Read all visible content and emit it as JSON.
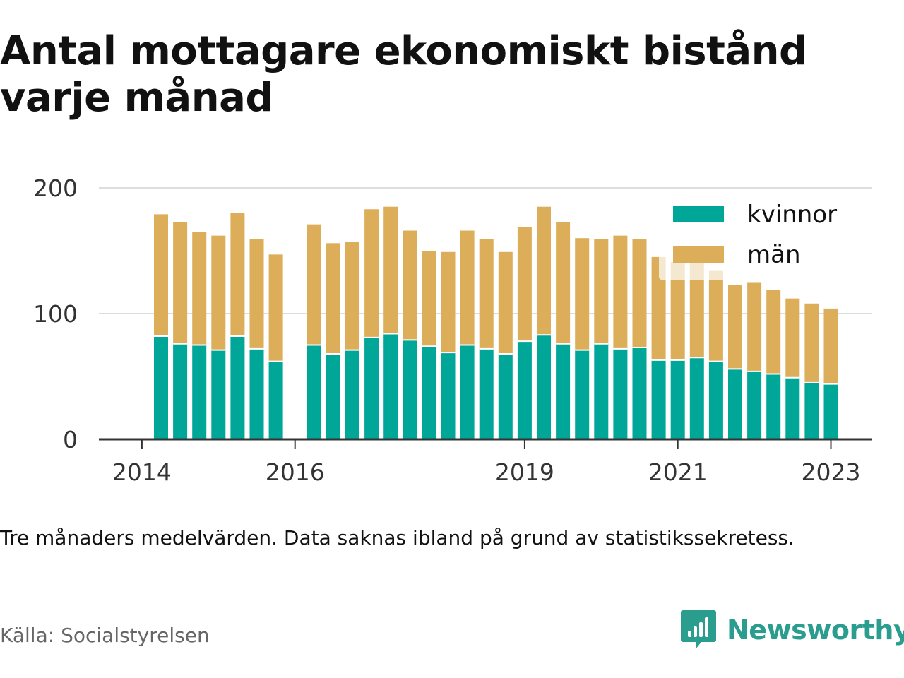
{
  "title": "Antal mottagare ekonomiskt bistånd varje månad",
  "note": "Tre månaders medelvärden. Data saknas ibland på grund av statistikssekretess.",
  "source": "Källa: Socialstyrelsen",
  "brand": {
    "name": "Newsworthy",
    "icon": "newsworthy-logo-icon"
  },
  "colors": {
    "kvinnor": "#00a698",
    "man": "#dcae5a",
    "grid": "#dddddd",
    "axis": "#333333"
  },
  "chart_data": {
    "type": "bar",
    "stacked": true,
    "x_ticks": [
      "2014",
      "2016",
      "2019",
      "2021",
      "2023"
    ],
    "y_ticks": [
      "0",
      "100",
      "200"
    ],
    "ylim": [
      0,
      200
    ],
    "legend_position": "top-right",
    "categories": [
      "2014-Q2",
      "2014-Q3",
      "2014-Q4",
      "2015-Q1",
      "2015-Q2",
      "2015-Q3",
      "2015-Q4",
      "2016-Q1",
      "2016-Q2",
      "2016-Q3",
      "2016-Q4",
      "2017-Q1",
      "2017-Q2",
      "2017-Q3",
      "2017-Q4",
      "2018-Q1",
      "2018-Q2",
      "2018-Q3",
      "2018-Q4",
      "2019-Q1",
      "2019-Q2",
      "2019-Q3",
      "2019-Q4",
      "2020-Q1",
      "2020-Q2",
      "2020-Q3",
      "2020-Q4",
      "2021-Q1",
      "2021-Q2",
      "2021-Q3",
      "2021-Q4",
      "2022-Q1",
      "2022-Q2",
      "2022-Q3",
      "2022-Q4",
      "2023-Q1"
    ],
    "series": [
      {
        "name": "kvinnor",
        "values": [
          82,
          76,
          75,
          71,
          82,
          72,
          62,
          null,
          75,
          68,
          71,
          81,
          84,
          79,
          74,
          69,
          75,
          72,
          68,
          78,
          83,
          76,
          71,
          76,
          72,
          73,
          63,
          63,
          65,
          62,
          56,
          54,
          52,
          49,
          45,
          44
        ]
      },
      {
        "name": "män",
        "values": [
          97,
          97,
          90,
          91,
          98,
          87,
          85,
          null,
          96,
          88,
          86,
          102,
          101,
          87,
          76,
          80,
          91,
          87,
          81,
          91,
          102,
          97,
          89,
          83,
          90,
          86,
          82,
          78,
          75,
          72,
          67,
          71,
          67,
          63,
          63,
          60
        ]
      }
    ]
  }
}
